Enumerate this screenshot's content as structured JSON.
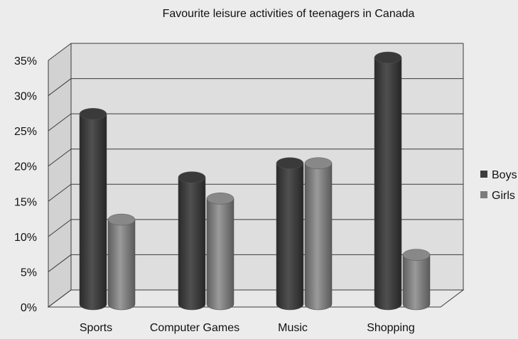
{
  "chart_data": {
    "type": "bar",
    "title": "Favourite leisure activities of teenagers in Canada",
    "xlabel": "",
    "ylabel": "",
    "categories": [
      "Sports",
      "Computer Games",
      "Music",
      "Shopping"
    ],
    "series": [
      {
        "name": "Boys",
        "values": [
          27,
          18,
          20,
          35
        ]
      },
      {
        "name": "Girls",
        "values": [
          12,
          15,
          20,
          7
        ]
      }
    ],
    "ylim": [
      0,
      35
    ],
    "y_ticks": [
      "0%",
      "5%",
      "10%",
      "15%",
      "20%",
      "25%",
      "30%",
      "35%"
    ],
    "y_tick_values": [
      0,
      5,
      10,
      15,
      20,
      25,
      30,
      35
    ],
    "grid": true,
    "legend_position": "right",
    "style": "3d-cylinder",
    "colors": {
      "boys": "#3c3c3c",
      "girls": "#7c7c7c",
      "grid": "#3a3a3a",
      "plot_background": "#dedede",
      "page_background": "#ececec",
      "text": "#111111"
    }
  }
}
